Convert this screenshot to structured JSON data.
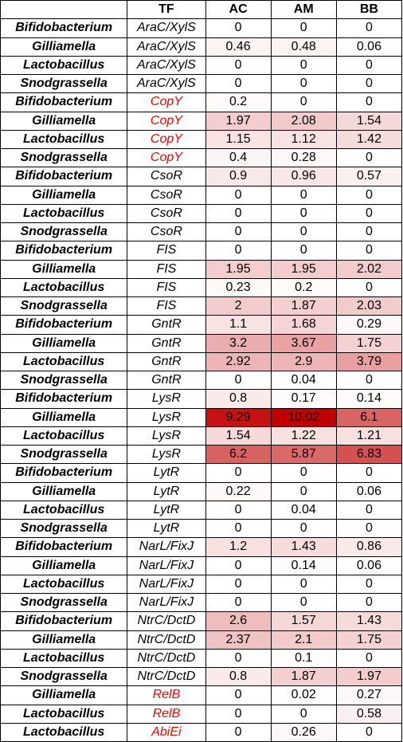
{
  "chart_data": {
    "type": "heatmap",
    "headers": [
      "",
      "TF",
      "AC",
      "AM",
      "BB"
    ],
    "columns": [
      "AC",
      "AM",
      "BB"
    ],
    "color_scale": {
      "min_color": "#ffffff",
      "max_color": "#c00000",
      "max_value": 10.02
    },
    "highlight_text_color": "#ff0000",
    "rows": [
      {
        "genus": "Bifidobacterium",
        "tf": "AraC/XylS",
        "red": false,
        "values": [
          0,
          0,
          0
        ]
      },
      {
        "genus": "Gilliamella",
        "tf": "AraC/XylS",
        "red": false,
        "values": [
          0.46,
          0.48,
          0.06
        ]
      },
      {
        "genus": "Lactobacillus",
        "tf": "AraC/XylS",
        "red": false,
        "values": [
          0,
          0,
          0
        ]
      },
      {
        "genus": "Snodgrassella",
        "tf": "AraC/XylS",
        "red": false,
        "values": [
          0,
          0,
          0
        ]
      },
      {
        "genus": "Bifidobacterium",
        "tf": "CopY",
        "red": true,
        "values": [
          0.2,
          0,
          0
        ]
      },
      {
        "genus": "Gilliamella",
        "tf": "CopY",
        "red": true,
        "values": [
          1.97,
          2.08,
          1.54
        ]
      },
      {
        "genus": "Lactobacillus",
        "tf": "CopY",
        "red": true,
        "values": [
          1.15,
          1.12,
          1.42
        ]
      },
      {
        "genus": "Snodgrassella",
        "tf": "CopY",
        "red": true,
        "values": [
          0.4,
          0.28,
          0
        ]
      },
      {
        "genus": "Bifidobacterium",
        "tf": "CsoR",
        "red": false,
        "values": [
          0.9,
          0.96,
          0.57
        ]
      },
      {
        "genus": "Gilliamella",
        "tf": "CsoR",
        "red": false,
        "values": [
          0,
          0,
          0
        ]
      },
      {
        "genus": "Lactobacillus",
        "tf": "CsoR",
        "red": false,
        "values": [
          0,
          0,
          0
        ]
      },
      {
        "genus": "Snodgrassella",
        "tf": "CsoR",
        "red": false,
        "values": [
          0,
          0,
          0
        ]
      },
      {
        "genus": "Bifidobacterium",
        "tf": "FIS",
        "red": false,
        "values": [
          0,
          0,
          0
        ]
      },
      {
        "genus": "Gilliamella",
        "tf": "FIS",
        "red": false,
        "values": [
          1.95,
          1.95,
          2.02
        ]
      },
      {
        "genus": "Lactobacillus",
        "tf": "FIS",
        "red": false,
        "values": [
          0.23,
          0.2,
          0
        ]
      },
      {
        "genus": "Snodgrassella",
        "tf": "FIS",
        "red": false,
        "values": [
          2,
          1.87,
          2.03
        ]
      },
      {
        "genus": "Bifidobacterium",
        "tf": "GntR",
        "red": false,
        "values": [
          1.1,
          1.68,
          0.29
        ]
      },
      {
        "genus": "Gilliamella",
        "tf": "GntR",
        "red": false,
        "values": [
          3.2,
          3.67,
          1.75
        ]
      },
      {
        "genus": "Lactobacillus",
        "tf": "GntR",
        "red": false,
        "values": [
          2.92,
          2.9,
          3.79
        ]
      },
      {
        "genus": "Snodgrassella",
        "tf": "GntR",
        "red": false,
        "values": [
          0,
          0.04,
          0
        ]
      },
      {
        "genus": "Bifidobacterium",
        "tf": "LysR",
        "red": false,
        "values": [
          0.8,
          0.17,
          0.14
        ]
      },
      {
        "genus": "Gilliamella",
        "tf": "LysR",
        "red": false,
        "values": [
          9.29,
          10.02,
          6.1
        ]
      },
      {
        "genus": "Lactobacillus",
        "tf": "LysR",
        "red": false,
        "values": [
          1.54,
          1.22,
          1.21
        ]
      },
      {
        "genus": "Snodgrassella",
        "tf": "LysR",
        "red": false,
        "values": [
          6.2,
          5.87,
          6.83
        ]
      },
      {
        "genus": "Bifidobacterium",
        "tf": "LytR",
        "red": false,
        "values": [
          0,
          0,
          0
        ]
      },
      {
        "genus": "Gilliamella",
        "tf": "LytR",
        "red": false,
        "values": [
          0.22,
          0,
          0.06
        ]
      },
      {
        "genus": "Lactobacillus",
        "tf": "LytR",
        "red": false,
        "values": [
          0,
          0.04,
          0
        ]
      },
      {
        "genus": "Snodgrassella",
        "tf": "LytR",
        "red": false,
        "values": [
          0,
          0,
          0
        ]
      },
      {
        "genus": "Bifidobacterium",
        "tf": "NarL/FixJ",
        "red": false,
        "values": [
          1.2,
          1.43,
          0.86
        ]
      },
      {
        "genus": "Gilliamella",
        "tf": "NarL/FixJ",
        "red": false,
        "values": [
          0,
          0.14,
          0.06
        ]
      },
      {
        "genus": "Lactobacillus",
        "tf": "NarL/FixJ",
        "red": false,
        "values": [
          0,
          0,
          0
        ]
      },
      {
        "genus": "Snodgrassella",
        "tf": "NarL/FixJ",
        "red": false,
        "values": [
          0,
          0,
          0
        ]
      },
      {
        "genus": "Bifidobacterium",
        "tf": "NtrC/DctD",
        "red": false,
        "values": [
          2.6,
          1.57,
          1.43
        ]
      },
      {
        "genus": "Gilliamella",
        "tf": "NtrC/DctD",
        "red": false,
        "values": [
          2.37,
          2.1,
          1.75
        ]
      },
      {
        "genus": "Lactobacillus",
        "tf": "NtrC/DctD",
        "red": false,
        "values": [
          0,
          0.1,
          0
        ]
      },
      {
        "genus": "Snodgrassella",
        "tf": "NtrC/DctD",
        "red": false,
        "values": [
          0.8,
          1.87,
          1.97
        ]
      },
      {
        "genus": "Gilliamella",
        "tf": "RelB",
        "red": true,
        "values": [
          0,
          0.02,
          0.27
        ]
      },
      {
        "genus": "Lactobacillus",
        "tf": "RelB",
        "red": true,
        "values": [
          0,
          0,
          0.58
        ]
      },
      {
        "genus": "Lactobacillus",
        "tf": "AbiEi",
        "red": true,
        "values": [
          0,
          0.26,
          0
        ]
      }
    ]
  }
}
